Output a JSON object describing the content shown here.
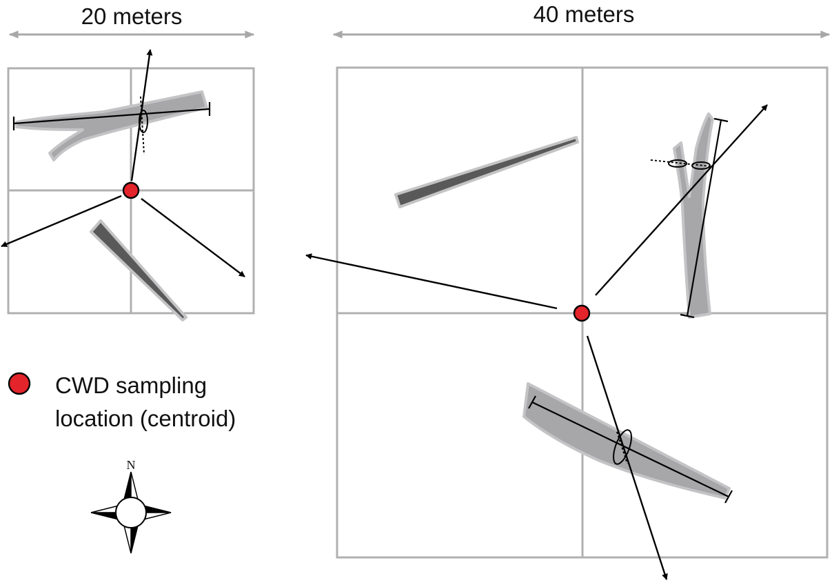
{
  "scale_labels": {
    "small_plot": "20 meters",
    "large_plot": "40 meters"
  },
  "legend": {
    "marker_color": "#e3242b",
    "line1": "CWD sampling",
    "line2": "location (centroid)"
  },
  "compass": {
    "north_label": "N",
    "icon": "compass-rose-icon"
  },
  "colors": {
    "grid": "#b0b0b0",
    "log_light": "#a7a7a9",
    "log_dark": "#595959",
    "centroid": "#e3242b"
  }
}
